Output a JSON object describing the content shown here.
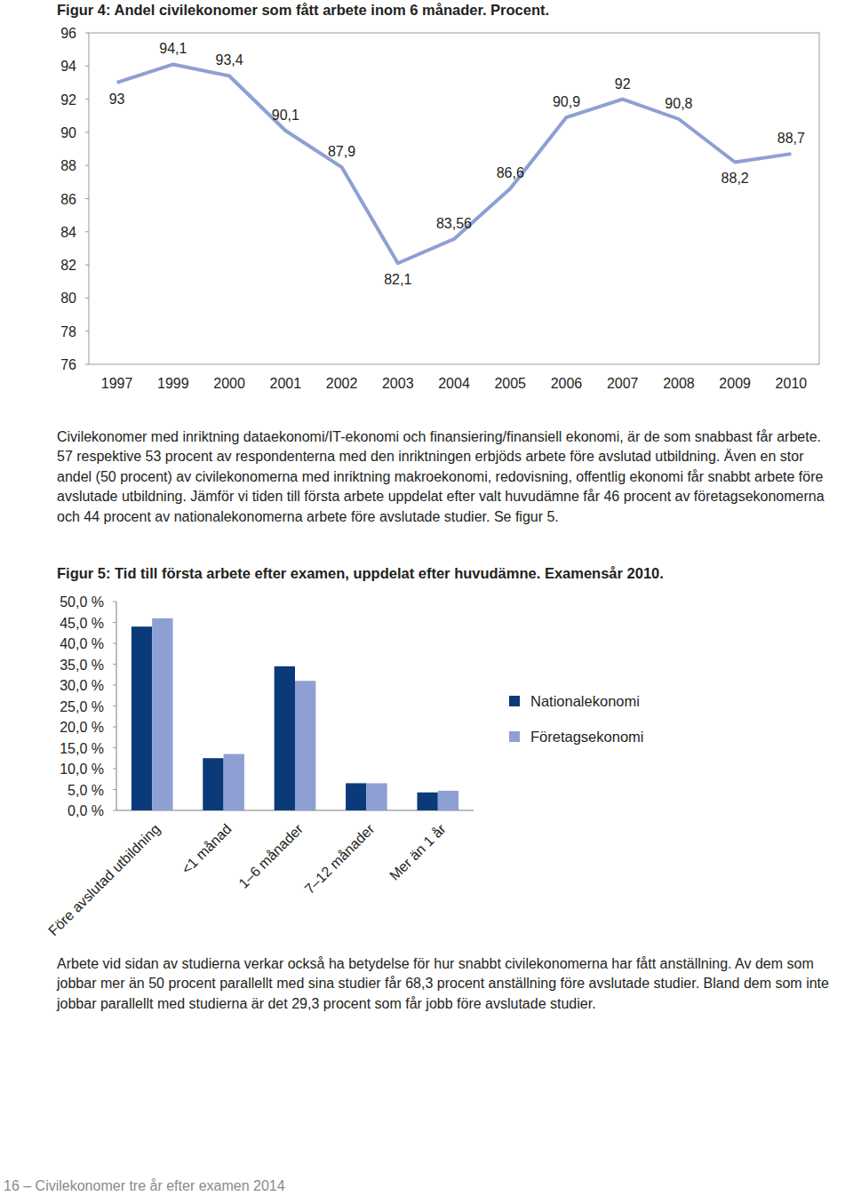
{
  "chart_data": [
    {
      "type": "line",
      "title": "Figur 4: Andel civilekonomer som fått arbete inom 6 månader. Procent.",
      "categories": [
        "1997",
        "1999",
        "2000",
        "2001",
        "2002",
        "2003",
        "2004",
        "2005",
        "2006",
        "2007",
        "2008",
        "2009",
        "2010"
      ],
      "values": [
        93,
        94.1,
        93.4,
        90.1,
        87.9,
        82.1,
        83.56,
        86.6,
        90.9,
        92,
        90.8,
        88.2,
        88.7
      ],
      "value_labels": [
        "93",
        "94,1",
        "93,4",
        "90,1",
        "87,9",
        "82,1",
        "83,56",
        "86,6",
        "90,9",
        "92",
        "90,8",
        "88,2",
        "88,7"
      ],
      "color": "#8e9fd3",
      "ylim": [
        76,
        96
      ],
      "yticks": [
        76,
        78,
        80,
        82,
        84,
        86,
        88,
        90,
        92,
        94,
        96
      ],
      "grid": false,
      "data_labels": true
    },
    {
      "type": "bar",
      "title": "Figur 5: Tid till första arbete efter examen, uppdelat efter huvudämne. Examensår 2010.",
      "categories": [
        "Före avslutad utbildning",
        "<1 månad",
        "1–6 månader",
        "7–12 månader",
        "Mer än 1 år"
      ],
      "series": [
        {
          "name": "Nationalekonomi",
          "color": "#0b3a7a",
          "values": [
            44,
            12.5,
            34.5,
            6.5,
            4.3
          ]
        },
        {
          "name": "Företagsekonomi",
          "color": "#8e9fd3",
          "values": [
            46,
            13.5,
            31,
            6.5,
            4.7
          ]
        }
      ],
      "ylim": [
        0,
        50
      ],
      "yticks": [
        {
          "value": 0,
          "label": "0,0 %"
        },
        {
          "value": 5,
          "label": "5,0 %"
        },
        {
          "value": 10,
          "label": "10,0 %"
        },
        {
          "value": 15,
          "label": "15,0 %"
        },
        {
          "value": 20,
          "label": "20,0 %"
        },
        {
          "value": 25,
          "label": "25,0 %"
        },
        {
          "value": 30,
          "label": "30,0 %"
        },
        {
          "value": 35,
          "label": "35,0 %"
        },
        {
          "value": 40,
          "label": "40,0 %"
        },
        {
          "value": 45,
          "label": "45,0 %"
        },
        {
          "value": 50,
          "label": "50,0 %"
        }
      ],
      "grid": false,
      "legend": "right"
    }
  ],
  "paragraphs": [
    "Civilekonomer med inriktning dataekonomi/IT-ekonomi och finansiering/finansiell ekonomi, är de som snabbast får arbete. 57 respektive 53 procent av respondenterna med den inriktningen erbjöds arbete före avslutad utbildning. Även en stor andel (50 procent) av civilekonomerna med inriktning makroekonomi, redovisning, offentlig ekonomi får snabbt arbete före avslutade utbildning. Jämför vi tiden till första arbete uppdelat efter valt huvudämne får 46 procent av företagsekonomerna och 44 procent av nationalekonomerna arbete före avslutade studier. Se figur 5.",
    "Arbete vid sidan av studierna verkar också ha betydelse för hur snabbt civilekonomerna har fått anställning. Av dem som jobbar mer än 50 procent parallellt med sina studier får 68,3 procent anställning före avslutade studier. Bland dem som inte jobbar parallellt med studierna är det 29,3 procent som får jobb före avslutade studier."
  ],
  "footer": "16 – Civilekonomer tre år efter examen 2014"
}
